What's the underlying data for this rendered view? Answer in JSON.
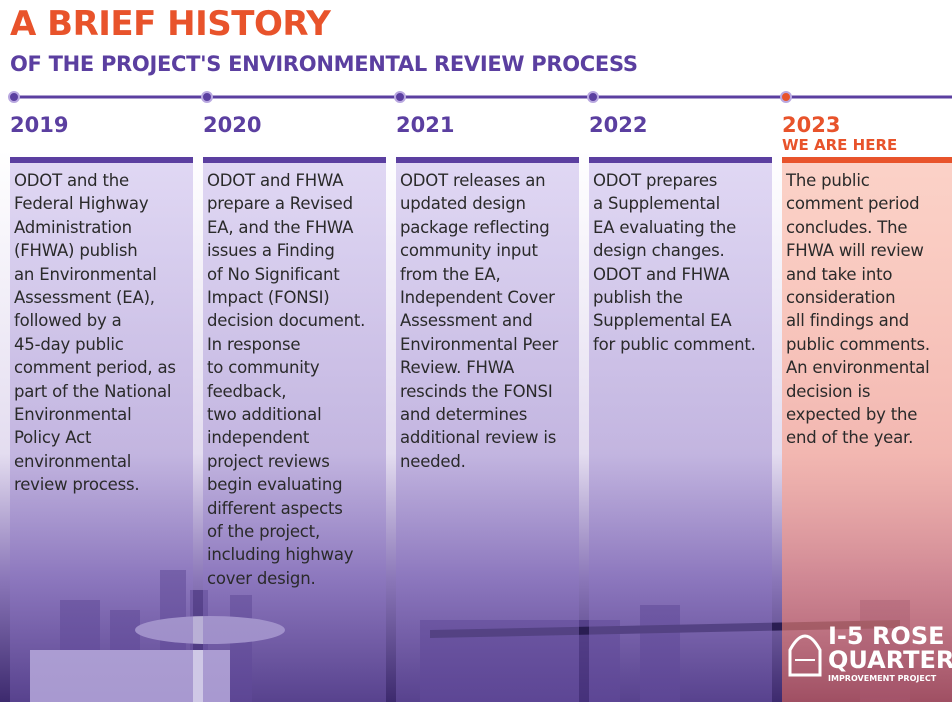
{
  "header": {
    "title": "A BRIEF HISTORY",
    "subtitle": "OF THE PROJECT'S ENVIRONMENTAL REVIEW PROCESS"
  },
  "timeline": [
    {
      "year": "2019",
      "lines": [
        "ODOT and the",
        "Federal Highway",
        "Administration",
        "(FHWA) publish",
        "an Environmental",
        "Assessment (EA),",
        "followed by a",
        "45-day public",
        "comment period, as",
        "part of the National",
        "Environmental",
        "Policy Act",
        "environmental",
        "review process."
      ]
    },
    {
      "year": "2020",
      "lines": [
        "ODOT and FHWA",
        "prepare a Revised",
        "EA, and the FHWA",
        "issues a Finding",
        "of No Significant",
        "Impact (FONSI)",
        "decision document.",
        "In response",
        "to community",
        "feedback,",
        "two additional",
        "independent",
        "project reviews",
        "begin evaluating",
        "different aspects",
        "of the project,",
        "including highway",
        "cover design."
      ]
    },
    {
      "year": "2021",
      "lines": [
        "ODOT releases an",
        "updated design",
        "package reflecting",
        "community input",
        "from the EA,",
        "Independent Cover",
        "Assessment and",
        "Environmental Peer",
        "Review. FHWA",
        "rescinds the FONSI",
        "and determines",
        "additional review is",
        "needed."
      ]
    },
    {
      "year": "2022",
      "lines": [
        "ODOT prepares",
        "a Supplemental",
        "EA evaluating the",
        "design changes.",
        "ODOT and FHWA",
        "publish the",
        "Supplemental EA",
        "for public comment."
      ]
    },
    {
      "year": "2023",
      "tag": "WE ARE HERE",
      "lines": [
        "The public",
        "comment period",
        "concludes. The",
        "FHWA will review",
        "and take into",
        "consideration",
        "all findings and",
        "public comments.",
        "An environmental",
        "decision is",
        "expected by the",
        "end of the year."
      ]
    }
  ],
  "logo": {
    "name_line1": "I-5 ROSE",
    "name_line2": "QUARTER",
    "tagline": "IMPROVEMENT PROJECT"
  }
}
